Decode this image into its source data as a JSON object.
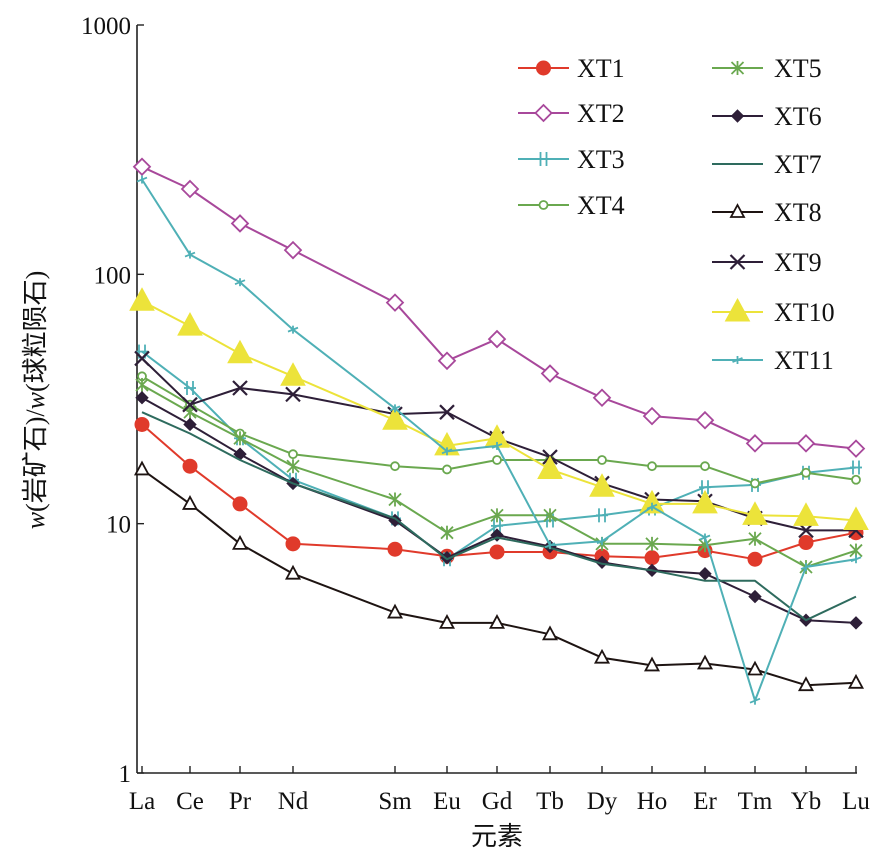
{
  "chart_data": {
    "type": "line",
    "y_scale": "log",
    "ylim": [
      1,
      1000
    ],
    "y_ticks": [
      1,
      10,
      100,
      1000
    ],
    "y_tick_labels": [
      "1",
      "10",
      "100",
      "1000"
    ],
    "xlabel": "元素",
    "ylabel_parts": [
      {
        "text": "w",
        "italic": true
      },
      {
        "text": "(岩矿石)/",
        "italic": false
      },
      {
        "text": "w",
        "italic": true
      },
      {
        "text": "(球粒陨石)",
        "italic": false
      }
    ],
    "categories": [
      "La",
      "Ce",
      "Pr",
      "Nd",
      "Sm",
      "Eu",
      "Gd",
      "Tb",
      "Dy",
      "Ho",
      "Er",
      "Tm",
      "Yb",
      "Lu"
    ],
    "legend_placement": "top-right",
    "grid": false,
    "series": [
      {
        "name": "XT1",
        "color": "#e03a2b",
        "marker": "circle",
        "values": [
          25,
          17,
          12,
          8.3,
          7.9,
          7.4,
          7.7,
          7.7,
          7.4,
          7.3,
          7.8,
          7.2,
          8.4,
          9.2
        ]
      },
      {
        "name": "XT2",
        "color": "#a8489b",
        "marker": "diamond-open",
        "values": [
          270,
          220,
          160,
          125,
          77,
          45,
          55,
          40,
          32,
          27,
          26,
          21,
          21,
          20
        ]
      },
      {
        "name": "XT3",
        "color": "#4fb0b6",
        "marker": "bar",
        "values": [
          49,
          35,
          22,
          15,
          10.5,
          7.2,
          9.8,
          10.3,
          10.8,
          11.5,
          14,
          14.3,
          16,
          16.8
        ]
      },
      {
        "name": "XT4",
        "color": "#6aa84f",
        "marker": "circle-open",
        "values": [
          39,
          30,
          23,
          19,
          17,
          16.5,
          18,
          18,
          18,
          17,
          17,
          14.5,
          16,
          15
        ]
      },
      {
        "name": "XT5",
        "color": "#6aa84f",
        "marker": "star",
        "values": [
          36,
          28,
          22,
          17,
          12.5,
          9.2,
          10.8,
          10.8,
          8.3,
          8.3,
          8.2,
          8.7,
          6.7,
          7.8
        ]
      },
      {
        "name": "XT6",
        "color": "#2e1f38",
        "marker": "diamond",
        "values": [
          32,
          25,
          19,
          14.5,
          10.3,
          7.3,
          9,
          8.1,
          7,
          6.5,
          6.3,
          5.1,
          4.1,
          4
        ]
      },
      {
        "name": "XT7",
        "color": "#2e6b5e",
        "marker": "none",
        "values": [
          28,
          23,
          18,
          14.5,
          10.5,
          7.2,
          8.8,
          8,
          6.9,
          6.5,
          5.9,
          5.9,
          4.1,
          5.1
        ]
      },
      {
        "name": "XT8",
        "color": "#1e1412",
        "marker": "triangle-open",
        "values": [
          16.5,
          12,
          8.3,
          6.3,
          4.4,
          4,
          4,
          3.6,
          2.9,
          2.7,
          2.75,
          2.6,
          2.25,
          2.3
        ]
      },
      {
        "name": "XT9",
        "color": "#2e1f38",
        "marker": "x",
        "values": [
          46,
          30,
          35,
          33,
          27.5,
          28,
          22,
          18.5,
          14.5,
          12.5,
          12.3,
          10.5,
          9.4,
          9.4
        ]
      },
      {
        "name": "XT10",
        "color": "#ece33a",
        "marker": "triangle",
        "values": [
          78,
          62,
          48,
          39,
          26,
          20.5,
          22,
          16.5,
          14,
          12,
          12,
          10.8,
          10.7,
          10.3
        ]
      },
      {
        "name": "XT11",
        "color": "#4fb0b6",
        "marker": "tick",
        "values": [
          240,
          120,
          93,
          60,
          29,
          19.5,
          20.5,
          8.2,
          8.5,
          11.7,
          8.8,
          1.95,
          6.7,
          7.2
        ]
      }
    ]
  }
}
